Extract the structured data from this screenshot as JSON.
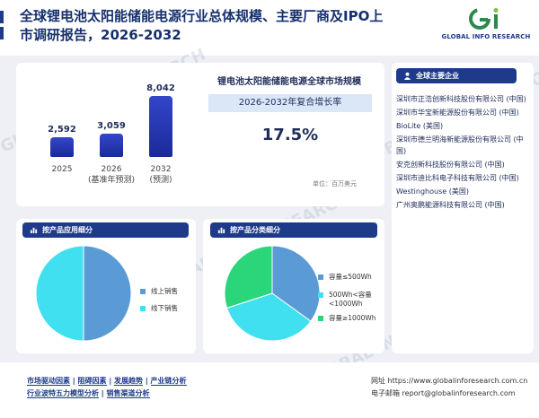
{
  "header": {
    "title_line1": "全球锂电池太阳能储能电源行业总体规模、主要厂商及IPO上",
    "title_line2": "市调研报告，2026-2032",
    "logo_text": "GLOBAL INFO RESEARCH",
    "watermark": "GLOBAL INFO RESEARCH"
  },
  "market": {
    "title": "锂电池太阳能储能电源全球市场规模",
    "cagr_label": "2026-2032年复合增长率",
    "cagr_value": "17.5%",
    "unit": "单位：百万美元"
  },
  "chart_data": [
    {
      "type": "bar",
      "categories": [
        "2025",
        "2026\n(基准年预测)",
        "2032\n(预测)"
      ],
      "values": [
        2592,
        3059,
        8042
      ],
      "value_labels": [
        "2,592",
        "3,059",
        "8,042"
      ]
    },
    {
      "type": "pie",
      "title": "按产品应用细分",
      "labels": [
        "线上销售",
        "线下销售"
      ],
      "values": [
        50,
        50
      ],
      "colors": [
        "#5b9bd5",
        "#40e0f0"
      ]
    },
    {
      "type": "pie",
      "title": "按产品分类细分",
      "labels": [
        "容量≤500Wh",
        "500Wh<容量<1000Wh",
        "容量≥1000Wh"
      ],
      "values": [
        35,
        35,
        30
      ],
      "colors": [
        "#5b9bd5",
        "#40e0f0",
        "#2bd67b"
      ]
    }
  ],
  "bar_labels": {
    "c1": "2025",
    "c2a": "2026",
    "c2b": "(基准年预测)",
    "c3a": "2032",
    "c3b": "(预测)"
  },
  "companies": {
    "heading": "全球主要企业",
    "items": [
      "深圳市正浩创新科技股份有限公司 (中国)",
      "深圳市华宝新能源股份有限公司 (中国)",
      "BioLite (美国)",
      "深圳市德兰明海新能源股份有限公司 (中国)",
      "安克创新科技股份有限公司 (中国)",
      "深圳市迪比科电子科技有限公司 (中国)",
      "Westinghouse (美国)",
      "广州奥鹏能源科技有限公司 (中国)"
    ]
  },
  "app_section": {
    "heading": "按产品应用细分",
    "legend": [
      "线上销售",
      "线下销售"
    ]
  },
  "type_section": {
    "heading": "按产品分类细分",
    "legend": [
      "容量≤500Wh",
      "500Wh<容量<1000Wh",
      "容量≥1000Wh"
    ]
  },
  "footer": {
    "links_row1": [
      "市场驱动因素",
      "阻碍因素",
      "发展趋势",
      "产业链分析"
    ],
    "links_row2": [
      "行业波特五力模型分析",
      "销售渠道分析"
    ],
    "separator": "|",
    "website_label": "网址",
    "website": "https://www.globalinforesearch.com.cn",
    "email_label": "电子邮箱",
    "email": "report@globalinforesearch.com"
  },
  "colors": {
    "brand": "#1e3a8a",
    "bar": "#2436b3",
    "pie_blue": "#5b9bd5",
    "pie_cyan": "#40e0f0",
    "pie_green": "#2bd67b"
  }
}
